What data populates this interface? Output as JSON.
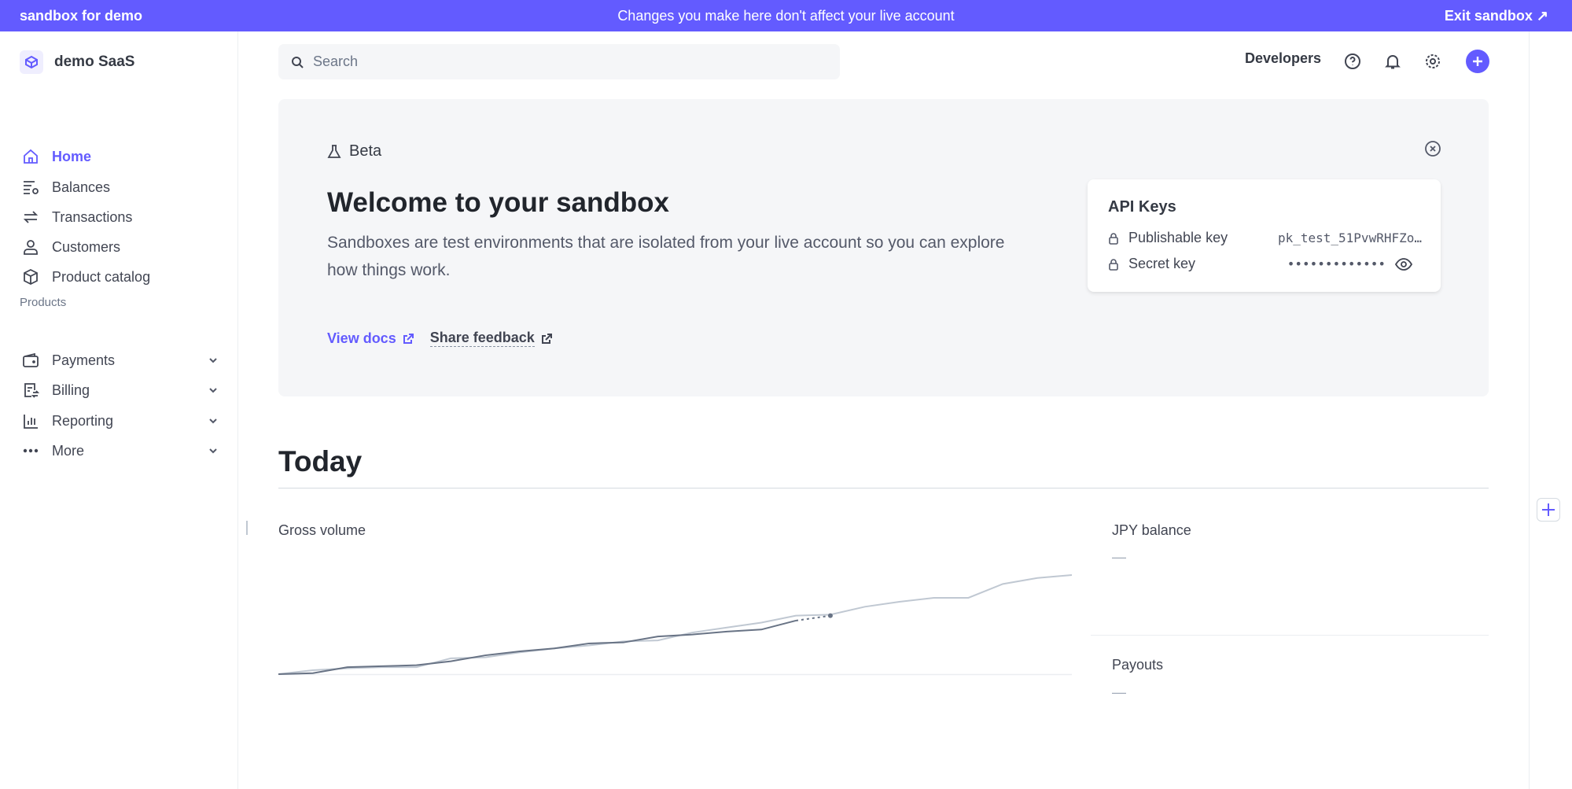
{
  "topbar": {
    "sandbox_name": "sandbox for demo",
    "notice": "Changes you make here don't affect your live account",
    "exit_label": "Exit sandbox ↗"
  },
  "sidebar": {
    "account": "demo SaaS",
    "items": [
      {
        "label": "Home",
        "icon": "home-icon",
        "active": true
      },
      {
        "label": "Balances",
        "icon": "balances-icon"
      },
      {
        "label": "Transactions",
        "icon": "transactions-icon"
      },
      {
        "label": "Customers",
        "icon": "customer-icon"
      },
      {
        "label": "Product catalog",
        "icon": "box-icon"
      }
    ],
    "section_label": "Products",
    "products": [
      {
        "label": "Payments",
        "icon": "wallet-icon"
      },
      {
        "label": "Billing",
        "icon": "billing-icon"
      },
      {
        "label": "Reporting",
        "icon": "bar-chart-icon"
      },
      {
        "label": "More",
        "icon": "more-icon"
      }
    ]
  },
  "header": {
    "search_placeholder": "Search",
    "developers": "Developers"
  },
  "banner": {
    "badge": "Beta",
    "title": "Welcome to your sandbox",
    "description": "Sandboxes are test environments that are isolated from your live account so you can explore how things work.",
    "view_docs": "View docs",
    "share_feedback": "Share feedback",
    "api": {
      "title": "API Keys",
      "publishable_label": "Publishable key",
      "publishable_value": "pk_test_51PvwRHFZo…",
      "secret_label": "Secret key",
      "secret_value": "•••••••••••••"
    }
  },
  "today": {
    "title": "Today",
    "gross_volume": "Gross volume",
    "jpy_balance": "JPY balance",
    "jpy_value": "—",
    "payouts": "Payouts",
    "payouts_value": "—"
  },
  "colors": {
    "accent": "#635bff",
    "current": "#687385",
    "previous": "#c0c8d2"
  },
  "chart_data": {
    "type": "line",
    "grid": false,
    "series": [
      {
        "values": [
          0,
          4,
          6,
          7,
          7,
          16,
          17,
          22,
          26,
          29,
          33,
          34,
          42,
          47,
          52,
          59,
          60,
          68,
          73,
          77,
          77,
          91,
          97,
          100
        ]
      },
      {
        "values": [
          0,
          1,
          7,
          8,
          9,
          13,
          19,
          23,
          26,
          31,
          32,
          38,
          40,
          43,
          45,
          54,
          59
        ]
      }
    ]
  }
}
